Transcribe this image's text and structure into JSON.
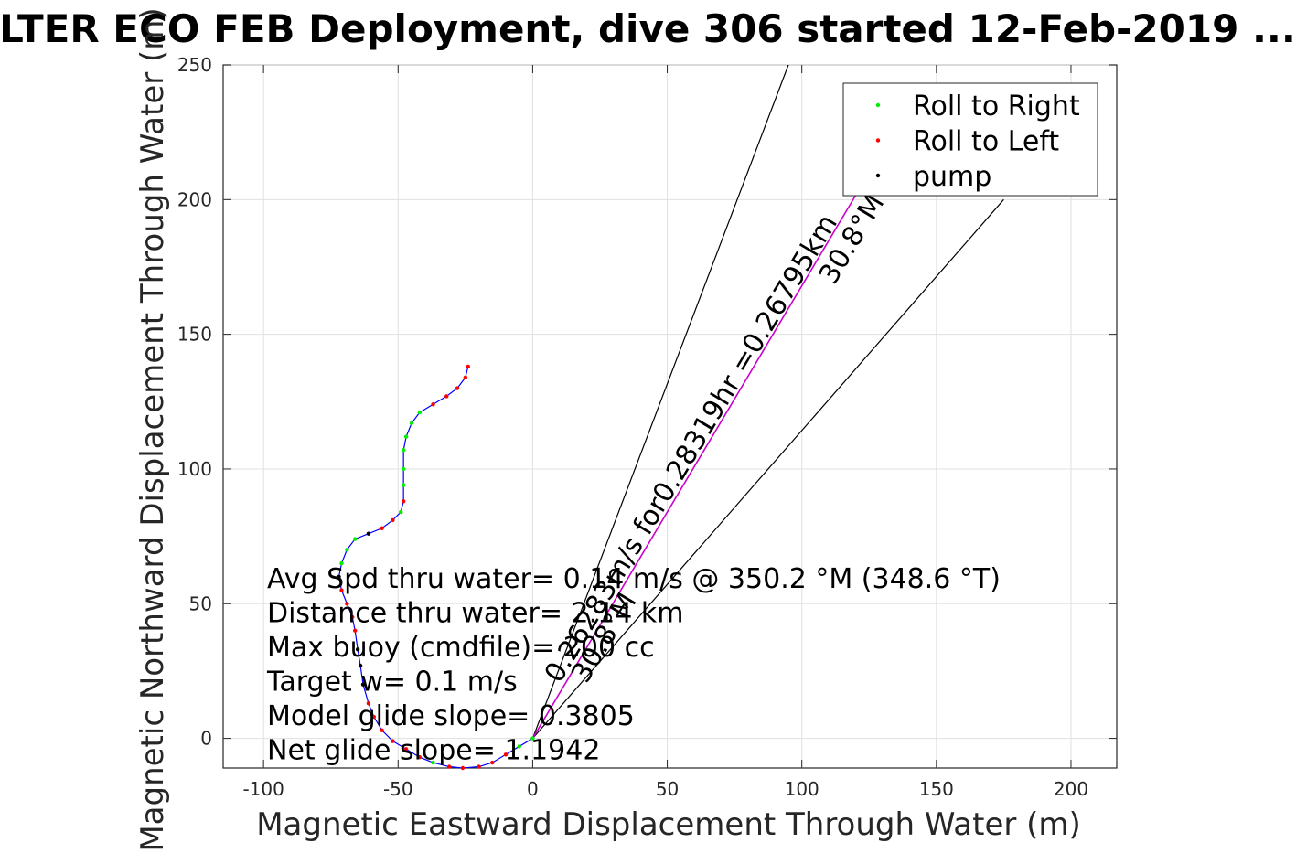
{
  "chart_data": {
    "type": "scatter",
    "title": "LTER ECO FEB Deployment, dive 306 started 12-Feb-2019 ...",
    "xlabel": "Magnetic Eastward Displacement Through Water (m)",
    "ylabel": "Magnetic Northward Displacement Through Water (m)",
    "xlim": [
      -115,
      217
    ],
    "ylim": [
      -11,
      250
    ],
    "xticks": [
      -100,
      -50,
      0,
      50,
      100,
      150,
      200
    ],
    "yticks": [
      0,
      50,
      100,
      150,
      200,
      250
    ],
    "grid": true,
    "legend_position": "top-right",
    "legend": [
      {
        "label": "Roll to Right",
        "color": "#00ee00"
      },
      {
        "label": "Roll to Left",
        "color": "#ff0000"
      },
      {
        "label": "pump",
        "color": "#000000"
      }
    ],
    "track": {
      "line_color": "#0000ff",
      "points": [
        [
          0,
          0
        ],
        [
          -5,
          -3
        ],
        [
          -10,
          -6
        ],
        [
          -15,
          -9
        ],
        [
          -20,
          -10.5
        ],
        [
          -26,
          -11
        ],
        [
          -31,
          -10.5
        ],
        [
          -37,
          -9
        ],
        [
          -42,
          -7
        ],
        [
          -47,
          -4
        ],
        [
          -52,
          -1
        ],
        [
          -56,
          3
        ],
        [
          -59,
          8
        ],
        [
          -61,
          13
        ],
        [
          -63,
          20
        ],
        [
          -64,
          27
        ],
        [
          -65,
          33
        ],
        [
          -66,
          40
        ],
        [
          -67,
          45
        ],
        [
          -69,
          50
        ],
        [
          -71,
          55
        ],
        [
          -72,
          60
        ],
        [
          -71,
          65
        ],
        [
          -69,
          70
        ],
        [
          -66,
          74
        ],
        [
          -61,
          76
        ],
        [
          -56,
          78
        ],
        [
          -52,
          81
        ],
        [
          -49,
          84
        ],
        [
          -48,
          88
        ],
        [
          -48,
          94
        ],
        [
          -48,
          100
        ],
        [
          -48,
          107
        ],
        [
          -47,
          112
        ],
        [
          -45,
          117
        ],
        [
          -42,
          121
        ],
        [
          -37,
          124
        ],
        [
          -32,
          127
        ],
        [
          -28,
          130
        ],
        [
          -25,
          134
        ],
        [
          -24,
          138
        ]
      ],
      "roll_right_indices": [
        0,
        1,
        7,
        22,
        23,
        24,
        28,
        30,
        31,
        32,
        33,
        34,
        35
      ],
      "roll_left_indices": [
        2,
        3,
        4,
        5,
        6,
        8,
        9,
        10,
        11,
        12,
        13,
        17,
        18,
        19,
        20,
        26,
        27,
        29,
        36,
        37,
        38,
        39,
        40
      ],
      "pump_indices": [
        14,
        15,
        16,
        21,
        25
      ]
    },
    "heading_line": {
      "from": [
        0,
        0
      ],
      "to": [
        125,
        210
      ],
      "color": "#cc00cc"
    },
    "sector_lines": [
      {
        "from": [
          0,
          0
        ],
        "to": [
          95,
          250
        ]
      },
      {
        "from": [
          0,
          0
        ],
        "to": [
          175,
          200
        ]
      }
    ],
    "rotated_labels": [
      {
        "text": "0.26283m/s for0.28319hr =0.26795km",
        "at": [
          10,
          20
        ],
        "angle_deg": 59
      },
      {
        "text": "30.8°M",
        "at": [
          20,
          20
        ],
        "angle_deg": 59
      },
      {
        "text": "30.8°M",
        "at": [
          112,
          168
        ],
        "angle_deg": 59
      }
    ],
    "annotations": [
      "Avg Spd thru water=  0.14 m/s @ 350.2 °M (348.6 °T)",
      "Distance thru water= 2.14 km",
      "Max buoy (cmdfile)= 200 cc",
      "Target w= 0.1 m/s",
      "Model glide slope= 0.3805",
      "Net glide slope= 1.1942"
    ]
  }
}
